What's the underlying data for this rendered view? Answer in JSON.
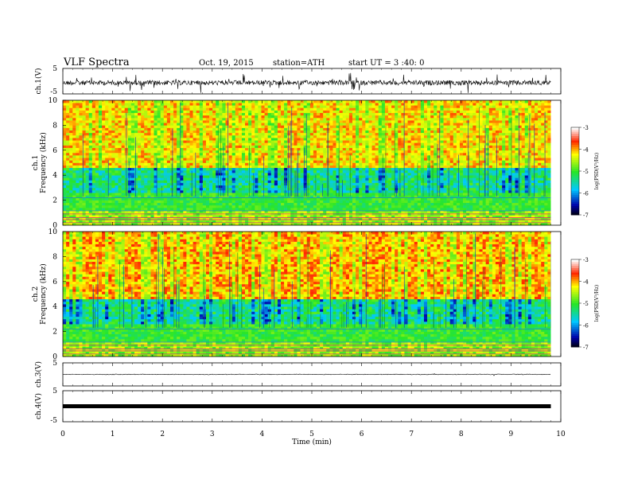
{
  "header": {
    "title": "VLF  Spectra",
    "date": "Oct. 19, 2015",
    "station": "station=ATH",
    "start": "start  UT  =   3  :40: 0"
  },
  "chart_data": [
    {
      "type": "line",
      "panel": "ch1-waveform",
      "ylabel": "ch.1(V)",
      "ylim": [
        -5,
        5
      ],
      "yticks": [
        "5",
        "-5"
      ],
      "xlim": [
        0,
        10
      ]
    },
    {
      "type": "heatmap",
      "panel": "ch1-spectrogram",
      "ylabel": "ch.1\nFrequency  (kHz)",
      "ylabel_line1": "ch.1",
      "ylabel_line2": "Frequency  (kHz)",
      "ylim": [
        0,
        10
      ],
      "yticks": [
        "0",
        "2",
        "4",
        "6",
        "8",
        "10"
      ],
      "xlim": [
        0,
        9.8
      ],
      "colorbar": {
        "label": "log(PSD(V²/Hz)",
        "range": [
          -7,
          -3
        ],
        "ticks": [
          "-3",
          "-4",
          "-5",
          "-6",
          "-7"
        ]
      }
    },
    {
      "type": "heatmap",
      "panel": "ch2-spectrogram",
      "ylabel_line1": "ch.2",
      "ylabel_line2": "Frequency  (kHz)",
      "ylim": [
        0,
        10
      ],
      "yticks": [
        "0",
        "2",
        "4",
        "6",
        "8",
        "10"
      ],
      "xlim": [
        0,
        9.8
      ],
      "colorbar": {
        "label": "log(PSD(V²/Hz)",
        "range": [
          -7,
          -3
        ],
        "ticks": [
          "-3",
          "-4",
          "-5",
          "-6",
          "-7"
        ]
      }
    },
    {
      "type": "line",
      "panel": "ch3-waveform",
      "ylabel": "ch.3(V)",
      "ylim": [
        -5,
        5
      ],
      "yticks": [
        "5"
      ],
      "level": 0
    },
    {
      "type": "line",
      "panel": "ch4-waveform",
      "ylabel": "ch.4(V)",
      "ylim": [
        -5,
        5
      ],
      "yticks": [
        "5",
        "-5"
      ],
      "level": 0
    }
  ],
  "xaxis": {
    "label": "Time  (min)",
    "ticks": [
      "0",
      "1",
      "2",
      "3",
      "4",
      "5",
      "6",
      "7",
      "8",
      "9",
      "10"
    ],
    "range": [
      0,
      10
    ]
  }
}
